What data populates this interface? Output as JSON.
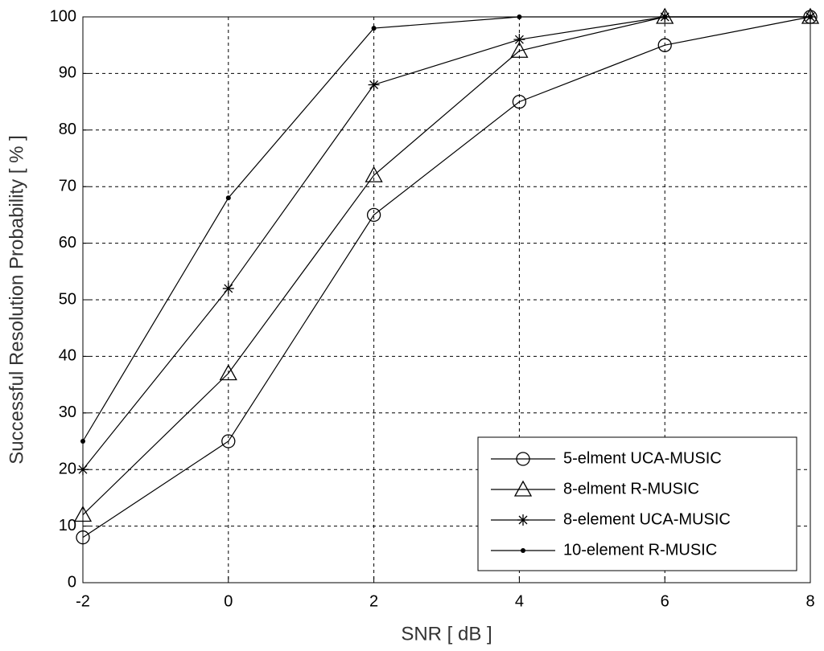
{
  "chart_data": {
    "type": "line",
    "xlabel": "SNR [ dB ]",
    "ylabel": "Successful Resolution Probability [ % ]",
    "x": [
      -2,
      0,
      2,
      4,
      6,
      8
    ],
    "series": [
      {
        "name": "5-elment UCA-MUSIC",
        "color": "#000000",
        "marker": "circle",
        "values": [
          8,
          25,
          65,
          85,
          95,
          100
        ]
      },
      {
        "name": "8-elment R-MUSIC",
        "color": "#000000",
        "marker": "triangle",
        "values": [
          12,
          37,
          72,
          94,
          100,
          100
        ]
      },
      {
        "name": "8-element UCA-MUSIC",
        "color": "#000000",
        "marker": "star",
        "values": [
          20,
          52,
          88,
          96,
          100,
          100
        ]
      },
      {
        "name": "10-element R-MUSIC",
        "color": "#000000",
        "marker": "dot",
        "values": [
          25,
          68,
          98,
          100,
          100,
          100
        ]
      }
    ],
    "xlim": [
      -2,
      8
    ],
    "xticks": [
      -2,
      0,
      2,
      4,
      6,
      8
    ],
    "ylim": [
      0,
      100
    ],
    "yticks": [
      0,
      10,
      20,
      30,
      40,
      50,
      60,
      70,
      80,
      90,
      100
    ],
    "grid": true,
    "legend": "lower right"
  }
}
